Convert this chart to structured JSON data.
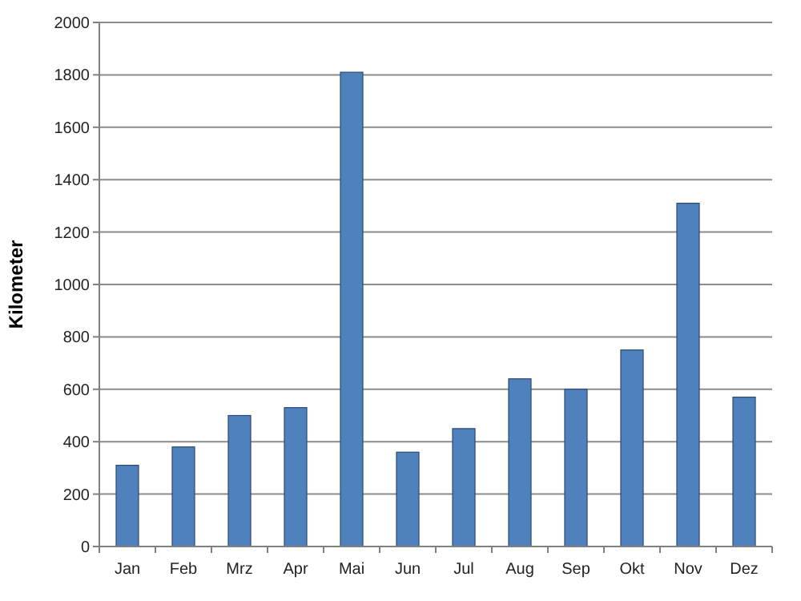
{
  "chart_data": {
    "type": "bar",
    "ylabel": "Kilometer",
    "categories": [
      "Jan",
      "Feb",
      "Mrz",
      "Apr",
      "Mai",
      "Jun",
      "Jul",
      "Aug",
      "Sep",
      "Okt",
      "Nov",
      "Dez"
    ],
    "values": [
      310,
      380,
      500,
      530,
      1810,
      360,
      450,
      640,
      600,
      750,
      1310,
      570
    ],
    "color": "#4f81bd",
    "ylim": [
      0,
      2000
    ],
    "yticks": [
      0,
      200,
      400,
      600,
      800,
      1000,
      1200,
      1400,
      1600,
      1800,
      2000
    ],
    "grid": "y"
  }
}
